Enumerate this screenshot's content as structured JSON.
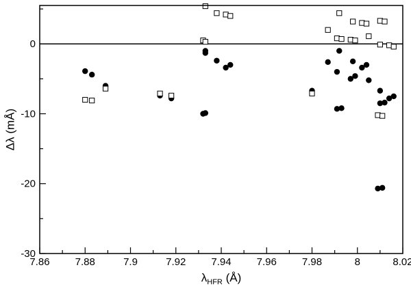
{
  "chart_data": {
    "type": "scatter",
    "xlabel": "λ",
    "xlabel_sub": "HFR",
    "xlabel_unit": " (Å)",
    "ylabel": "Δλ (mÅ)",
    "xlim": [
      7.86,
      8.02
    ],
    "ylim": [
      -30,
      5.5
    ],
    "x_ticks": [
      7.86,
      7.88,
      7.9,
      7.92,
      7.94,
      7.96,
      7.98,
      8.0,
      8.02
    ],
    "x_tick_labels": [
      "7.86",
      "7.88",
      "7.9",
      "7.92",
      "7.94",
      "7.96",
      "7.98",
      "8",
      "8.02"
    ],
    "y_ticks": [
      -30,
      -20,
      -10,
      0
    ],
    "y_tick_labels": [
      "-30",
      "-20",
      "-10",
      "0"
    ],
    "zero_line": 0,
    "grid": false,
    "series": [
      {
        "marker": "filled-circle",
        "color": "#000000",
        "points": [
          [
            7.88,
            -3.9
          ],
          [
            7.883,
            -4.4
          ],
          [
            7.889,
            -6.0
          ],
          [
            7.913,
            -7.4
          ],
          [
            7.918,
            -7.8
          ],
          [
            7.932,
            -10.0
          ],
          [
            7.933,
            -9.9
          ],
          [
            7.933,
            -1.0
          ],
          [
            7.933,
            -1.3
          ],
          [
            7.938,
            -2.4
          ],
          [
            7.942,
            -3.4
          ],
          [
            7.944,
            -3.0
          ],
          [
            7.98,
            -6.7
          ],
          [
            7.987,
            -2.6
          ],
          [
            7.991,
            -9.3
          ],
          [
            7.991,
            -4.0
          ],
          [
            7.992,
            -1.0
          ],
          [
            7.993,
            -9.2
          ],
          [
            7.997,
            -5.0
          ],
          [
            7.998,
            -2.5
          ],
          [
            7.999,
            -4.6
          ],
          [
            8.002,
            -3.4
          ],
          [
            8.004,
            -3.0
          ],
          [
            8.005,
            -5.2
          ],
          [
            8.009,
            -20.7
          ],
          [
            8.01,
            -6.7
          ],
          [
            8.01,
            -8.5
          ],
          [
            8.011,
            -20.6
          ],
          [
            8.012,
            -8.4
          ],
          [
            8.014,
            -7.8
          ],
          [
            8.016,
            -7.5
          ]
        ]
      },
      {
        "marker": "open-square",
        "color": "#000000",
        "points": [
          [
            7.88,
            -8.0
          ],
          [
            7.883,
            -8.1
          ],
          [
            7.889,
            -6.4
          ],
          [
            7.913,
            -7.1
          ],
          [
            7.918,
            -7.4
          ],
          [
            7.932,
            0.5
          ],
          [
            7.933,
            0.3
          ],
          [
            7.933,
            5.4
          ],
          [
            7.938,
            4.4
          ],
          [
            7.942,
            4.2
          ],
          [
            7.944,
            4.0
          ],
          [
            7.98,
            -7.1
          ],
          [
            7.987,
            2.0
          ],
          [
            7.991,
            0.8
          ],
          [
            7.992,
            4.4
          ],
          [
            7.993,
            0.7
          ],
          [
            7.997,
            0.6
          ],
          [
            7.998,
            3.2
          ],
          [
            7.999,
            0.5
          ],
          [
            8.002,
            3.0
          ],
          [
            8.004,
            2.9
          ],
          [
            8.005,
            1.1
          ],
          [
            8.009,
            -10.2
          ],
          [
            8.01,
            3.3
          ],
          [
            8.01,
            -0.1
          ],
          [
            8.011,
            -10.3
          ],
          [
            8.012,
            3.2
          ],
          [
            8.014,
            -0.2
          ],
          [
            8.016,
            -0.4
          ]
        ]
      }
    ]
  }
}
